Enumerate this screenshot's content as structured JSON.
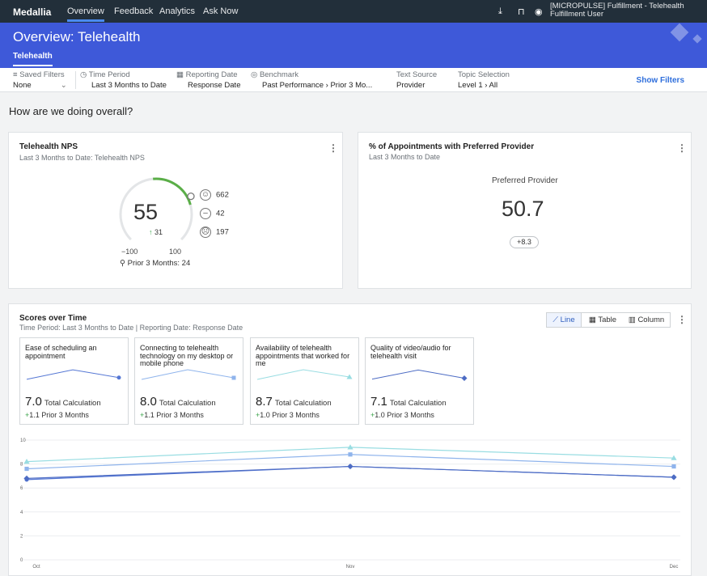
{
  "nav": {
    "logo": "Medallia",
    "items": [
      "Overview",
      "Feedback",
      "Analytics",
      "Ask Now"
    ],
    "user_line1": "[MICROPULSE] Fulfillment - Telehealth",
    "user_line2": "Fulfillment User",
    "icons": [
      "download-icon",
      "bookmark-icon",
      "user-icon"
    ]
  },
  "banner": {
    "title": "Overview: Telehealth",
    "tab": "Telehealth"
  },
  "filters": {
    "saved": {
      "label": "Saved Filters",
      "value": "None"
    },
    "time_period": {
      "label": "Time Period",
      "value": "Last 3 Months to Date"
    },
    "reporting_date": {
      "label": "Reporting Date",
      "value": "Response Date"
    },
    "benchmark": {
      "label": "Benchmark",
      "value": "Past Performance › Prior 3 Mo..."
    },
    "text_source": {
      "label": "Text Source",
      "value": "Provider"
    },
    "topic": {
      "label": "Topic Selection",
      "value": "Level 1 › All"
    },
    "show_filters": "Show Filters"
  },
  "section_title": "How are we doing overall?",
  "nps_card": {
    "title": "Telehealth NPS",
    "subtitle": "Last 3 Months to Date: Telehealth NPS",
    "value": "55",
    "delta": "31",
    "promoters": "662",
    "passives": "42",
    "detractors": "197",
    "min": "−100",
    "max": "100",
    "prior": "Prior 3 Months: 24",
    "gauge_fraction": 0.775,
    "benchmark_fraction": 0.62,
    "gauge_color": "#5aae47"
  },
  "pp_card": {
    "title": "% of Appointments with Preferred Provider",
    "subtitle": "Last 3 Months to Date",
    "label": "Preferred Provider",
    "value": "50.7",
    "delta": "+8.3"
  },
  "scores_card": {
    "title": "Scores over Time",
    "subtitle": "Time Period: Last 3 Months to Date | Reporting Date: Response Date",
    "views": [
      "Line",
      "Table",
      "Column"
    ],
    "active_view": "Line"
  },
  "metrics": [
    {
      "label": "Ease of scheduling an appointment",
      "score": "7.0",
      "score_label": "Total Calculation",
      "delta": "1.1",
      "prior_label": "Prior 3 Months",
      "color": "#5577d4",
      "marker": "circle"
    },
    {
      "label": "Connecting to telehealth technology on my desktop or mobile phone",
      "score": "8.0",
      "score_label": "Total Calculation",
      "delta": "1.1",
      "prior_label": "Prior 3 Months",
      "color": "#8fb4ec",
      "marker": "square"
    },
    {
      "label": "Availability of telehealth appointments that worked for me",
      "score": "8.7",
      "score_label": "Total Calculation",
      "delta": "1.0",
      "prior_label": "Prior 3 Months",
      "color": "#99dde2",
      "marker": "triangle"
    },
    {
      "label": "Quality of video/audio for telehealth visit",
      "score": "7.1",
      "score_label": "Total Calculation",
      "delta": "1.0",
      "prior_label": "Prior 3 Months",
      "color": "#4d6cc4",
      "marker": "diamond"
    }
  ],
  "chart_data": {
    "type": "line",
    "categories": [
      "Oct",
      "Nov",
      "Dec"
    ],
    "ylim": [
      0,
      10
    ],
    "yticks": [
      "0",
      "2",
      "4",
      "6",
      "8",
      "10"
    ],
    "grid": true,
    "series": [
      {
        "values": [
          6.7,
          7.8,
          6.9
        ],
        "color": "#5577d4",
        "marker": "circle"
      },
      {
        "values": [
          7.6,
          8.8,
          7.8
        ],
        "color": "#8fb4ec",
        "marker": "square"
      },
      {
        "values": [
          8.2,
          9.4,
          8.5
        ],
        "color": "#99dde2",
        "marker": "triangle"
      },
      {
        "values": [
          6.8,
          7.8,
          6.9
        ],
        "color": "#4d6cc4",
        "marker": "diamond"
      }
    ]
  }
}
